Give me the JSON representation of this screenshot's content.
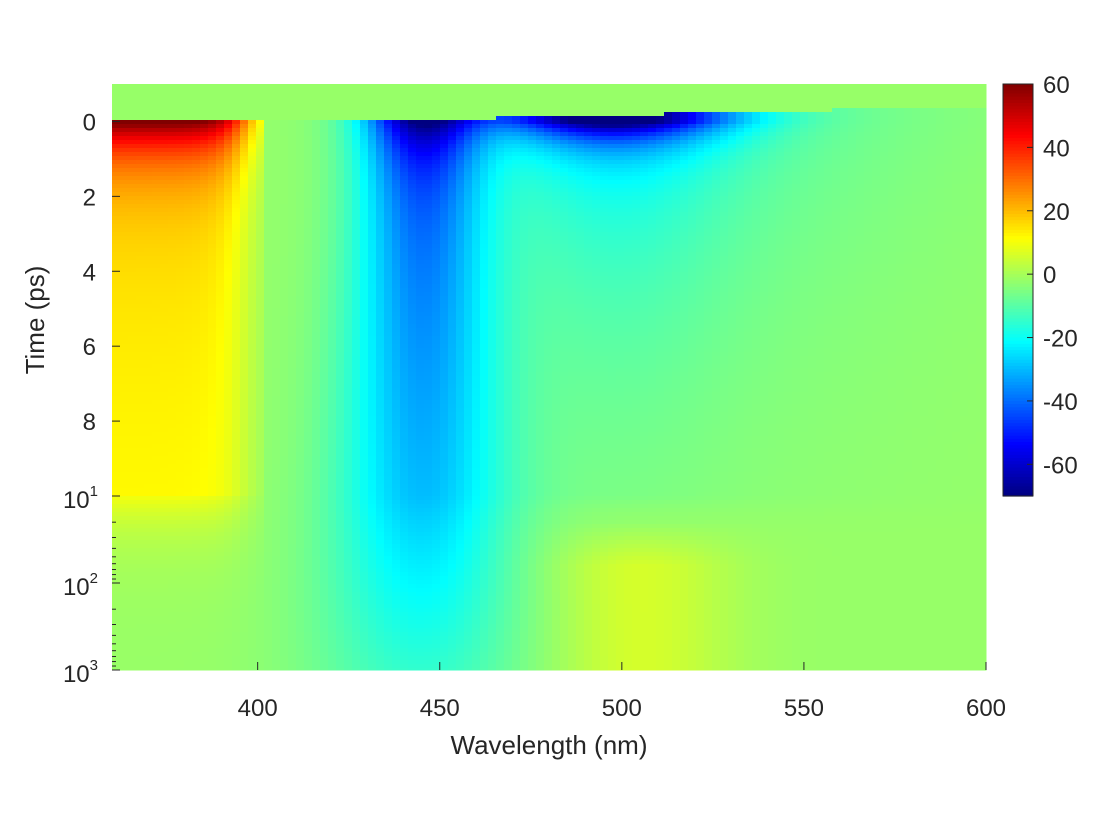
{
  "chart_data": {
    "type": "heatmap",
    "title": "",
    "xlabel": "Wavelength (nm)",
    "ylabel": "Time (ps)",
    "xlim": [
      360,
      600
    ],
    "x_ticks": [
      400,
      450,
      500,
      550,
      600
    ],
    "y_axis": {
      "linear_segment": {
        "range": [
          -1,
          10
        ],
        "ticks": [
          0,
          2,
          4,
          6,
          8
        ],
        "direction": "down"
      },
      "log_segment": {
        "range": [
          10,
          1000
        ],
        "ticks": [
          10,
          100,
          1000
        ],
        "tick_labels": [
          "10",
          "10",
          "10"
        ],
        "tick_exponents": [
          "1",
          "2",
          "3"
        ],
        "direction": "down"
      }
    },
    "colorbar": {
      "colormap": "jet",
      "range": [
        -70,
        60
      ],
      "ticks": [
        60,
        40,
        20,
        0,
        -20,
        -40,
        -60
      ]
    },
    "features": [
      {
        "name": "positive band",
        "wavelength_range": [
          360,
          400
        ],
        "time_range": [
          -0.5,
          8
        ],
        "peak_value": 55,
        "peak_time": 0
      },
      {
        "name": "negative band 1",
        "center_wavelength": 445,
        "time_range": [
          0,
          1000
        ],
        "peak_value": -65,
        "peak_time": 0
      },
      {
        "name": "negative band 2",
        "center_wavelength": 495,
        "time_range": [
          0,
          5
        ],
        "peak_value": -68,
        "peak_time": 0
      },
      {
        "name": "weak positive region",
        "wavelength_range": [
          490,
          530
        ],
        "time_range": [
          30,
          1000
        ],
        "peak_value": 5
      }
    ]
  }
}
